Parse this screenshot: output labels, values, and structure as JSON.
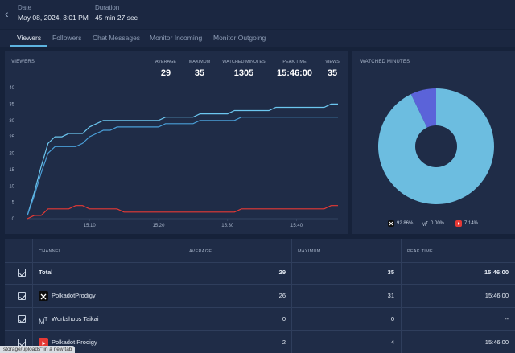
{
  "header": {
    "date_label": "Date",
    "date_value": "May 08, 2024, 3:01 PM",
    "duration_label": "Duration",
    "duration_value": "45 min 27 sec"
  },
  "tabs": [
    "Viewers",
    "Followers",
    "Chat Messages",
    "Monitor Incoming",
    "Monitor Outgoing"
  ],
  "viewers_panel": {
    "title": "VIEWERS",
    "stats": [
      {
        "label": "AVERAGE",
        "value": "29"
      },
      {
        "label": "MAXIMUM",
        "value": "35"
      },
      {
        "label": "WATCHED MINUTES",
        "value": "1305"
      },
      {
        "label": "PEAK TIME",
        "value": "15:46:00"
      },
      {
        "label": "VIEWS",
        "value": "35"
      }
    ]
  },
  "watched_panel": {
    "title": "WATCHED MINUTES",
    "legend": [
      {
        "label": "92.86%",
        "icon": "x-icon"
      },
      {
        "label": "0.00%",
        "icon": "mt-icon"
      },
      {
        "label": "7.14%",
        "icon": "youtube-icon"
      }
    ]
  },
  "table": {
    "headers": [
      "CHANNEL",
      "AVERAGE",
      "MAXIMUM",
      "PEAK TIME"
    ],
    "rows": [
      {
        "channel": "Total",
        "average": "29",
        "maximum": "35",
        "peak": "15:46:00",
        "icon": ""
      },
      {
        "channel": "PolkadotProdigy",
        "average": "26",
        "maximum": "31",
        "peak": "15:46:00",
        "icon": "x-icon"
      },
      {
        "channel": "Workshops Taikai",
        "average": "0",
        "maximum": "0",
        "peak": "--",
        "icon": "mt-icon"
      },
      {
        "channel": "Polkadot Prodigy",
        "average": "2",
        "maximum": "4",
        "peak": "15:46:00",
        "icon": "youtube-icon"
      }
    ]
  },
  "status_bar": "storage/uploads\" in a new tab",
  "colors": {
    "total": "#6cc6ef",
    "x": "#4a9fd8",
    "youtube": "#e53935",
    "mt": "#6a6fe0"
  },
  "chart_data": [
    {
      "type": "line",
      "title": "VIEWERS",
      "x": [
        0,
        1,
        2,
        3,
        4,
        5,
        6,
        7,
        8,
        9,
        10,
        11,
        12,
        13,
        14,
        15,
        16,
        17,
        18,
        19,
        20,
        21,
        22,
        23,
        24,
        25,
        26,
        27,
        28,
        29,
        30,
        31,
        32,
        33,
        34,
        35,
        36,
        37,
        38,
        39,
        40,
        41,
        42,
        43,
        44,
        45
      ],
      "x_tick_labels": [
        {
          "at": 9,
          "label": "15:10"
        },
        {
          "at": 19,
          "label": "15:20"
        },
        {
          "at": 29,
          "label": "15:30"
        },
        {
          "at": 39,
          "label": "15:40"
        }
      ],
      "ylim": [
        0,
        40
      ],
      "y_ticks": [
        0,
        5,
        10,
        15,
        20,
        25,
        30,
        35,
        40
      ],
      "series": [
        {
          "name": "Total",
          "color": "#6cc6ef",
          "values": [
            1,
            8,
            16,
            23,
            25,
            25,
            26,
            26,
            26,
            28,
            29,
            30,
            30,
            30,
            30,
            30,
            30,
            30,
            30,
            30,
            31,
            31,
            31,
            31,
            31,
            32,
            32,
            32,
            32,
            32,
            33,
            33,
            33,
            33,
            33,
            33,
            34,
            34,
            34,
            34,
            34,
            34,
            34,
            34,
            35,
            35
          ]
        },
        {
          "name": "PolkadotProdigy",
          "color": "#4a9fd8",
          "values": [
            1,
            7,
            14,
            20,
            22,
            22,
            22,
            22,
            23,
            25,
            26,
            27,
            27,
            28,
            28,
            28,
            28,
            28,
            28,
            28,
            29,
            29,
            29,
            29,
            29,
            30,
            30,
            30,
            30,
            30,
            30,
            31,
            31,
            31,
            31,
            31,
            31,
            31,
            31,
            31,
            31,
            31,
            31,
            31,
            31,
            31
          ]
        },
        {
          "name": "Polkadot Prodigy",
          "color": "#e53935",
          "values": [
            0,
            1,
            1,
            3,
            3,
            3,
            3,
            4,
            4,
            3,
            3,
            3,
            3,
            3,
            2,
            2,
            2,
            2,
            2,
            2,
            2,
            2,
            2,
            2,
            2,
            2,
            2,
            2,
            2,
            2,
            2,
            3,
            3,
            3,
            3,
            3,
            3,
            3,
            3,
            3,
            3,
            3,
            3,
            3,
            4,
            4
          ]
        }
      ]
    },
    {
      "type": "pie",
      "title": "WATCHED MINUTES",
      "categories": [
        "X",
        "MT",
        "YouTube"
      ],
      "values": [
        92.86,
        0.0,
        7.14
      ],
      "colors": [
        "#6cbde0",
        "#6a6fe0",
        "#5b63d9"
      ]
    }
  ]
}
